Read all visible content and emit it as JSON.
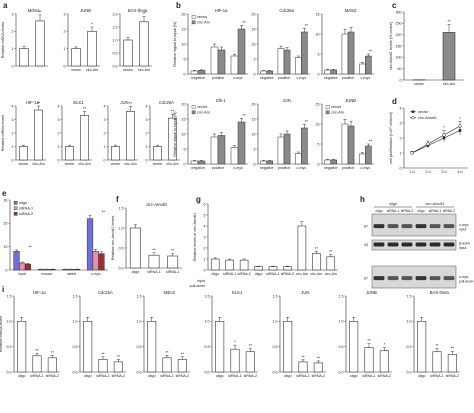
{
  "chart_data": [
    {
      "id": "a1",
      "type": "bar",
      "panel": "a",
      "title": "Mdm2",
      "categories": [
        "vector",
        "circ-Amotl1"
      ],
      "values": [
        1.0,
        2.6
      ],
      "errors": [
        0.15,
        0.35
      ],
      "ylim": [
        0,
        3
      ],
      "yticks": [
        "0",
        "1",
        "2",
        "3"
      ],
      "ylabel": "Relative mRNA levels",
      "sig": [
        "",
        "**"
      ],
      "colors": [
        "#ffffff",
        "#ffffff"
      ],
      "show_xticks": false
    },
    {
      "id": "a2",
      "type": "bar",
      "panel": "a",
      "title": "JUNB",
      "categories": [
        "vector",
        "circ-Am"
      ],
      "values": [
        1.0,
        2.0
      ],
      "errors": [
        0.1,
        0.25
      ],
      "ylim": [
        0,
        3
      ],
      "yticks": [
        "0",
        "1",
        "2",
        "3"
      ],
      "ylabel": "",
      "sig": [
        "",
        "*"
      ],
      "colors": [
        "#ffffff",
        "#ffffff"
      ],
      "show_xticks": true
    },
    {
      "id": "a3",
      "type": "bar",
      "panel": "a",
      "title": "BAX-theta",
      "categories": [
        "vector",
        "circ-Am"
      ],
      "values": [
        1.0,
        1.7
      ],
      "errors": [
        0.1,
        0.2
      ],
      "ylim": [
        0,
        2
      ],
      "yticks": [
        "0.0",
        "0.5",
        "1.0",
        "1.5",
        "2.0"
      ],
      "ylabel": "",
      "sig": [
        "",
        "**"
      ],
      "colors": [
        "#ffffff",
        "#ffffff"
      ],
      "show_xticks": true
    },
    {
      "id": "a4",
      "type": "bar",
      "panel": "a",
      "title": "HIF-1a",
      "categories": [
        "vector",
        "circ-Am"
      ],
      "values": [
        1.0,
        3.7
      ],
      "errors": [
        0.1,
        0.3
      ],
      "ylim": [
        0,
        4
      ],
      "yticks": [
        "0",
        "1",
        "2",
        "3",
        "4"
      ],
      "ylabel": "Relative mRNA levels",
      "sig": [
        "",
        "**"
      ],
      "colors": [
        "#ffffff",
        "#ffffff"
      ],
      "show_xticks": true
    },
    {
      "id": "a5",
      "type": "bar",
      "panel": "a",
      "title": "ELK1",
      "categories": [
        "vector",
        "circ-Am"
      ],
      "values": [
        1.0,
        3.3
      ],
      "errors": [
        0.1,
        0.3
      ],
      "ylim": [
        0,
        4
      ],
      "yticks": [
        "0",
        "1",
        "2",
        "3",
        "4"
      ],
      "ylabel": "",
      "sig": [
        "",
        "**"
      ],
      "colors": [
        "#ffffff",
        "#ffffff"
      ],
      "show_xticks": true
    },
    {
      "id": "a6",
      "type": "bar",
      "panel": "a",
      "title": "JUN",
      "categories": [
        "vector",
        "circ-Am"
      ],
      "values": [
        1.0,
        3.6
      ],
      "errors": [
        0.1,
        0.35
      ],
      "ylim": [
        0,
        4
      ],
      "yticks": [
        "0",
        "1",
        "2",
        "3",
        "4"
      ],
      "ylabel": "",
      "sig": [
        "",
        "**"
      ],
      "colors": [
        "#ffffff",
        "#ffffff"
      ],
      "show_xticks": true
    },
    {
      "id": "a7",
      "type": "bar",
      "panel": "a",
      "title": "Cdc25A",
      "categories": [
        "vector",
        "circ-Am"
      ],
      "values": [
        1.0,
        3.1
      ],
      "errors": [
        0.1,
        0.3
      ],
      "ylim": [
        0,
        4
      ],
      "yticks": [
        "0",
        "1",
        "2",
        "3",
        "4"
      ],
      "ylabel": "",
      "sig": [
        "",
        "**"
      ],
      "colors": [
        "#ffffff",
        "#ffffff"
      ],
      "show_xticks": true
    },
    {
      "id": "b1",
      "type": "bar",
      "panel": "b",
      "title": "HIF-1a",
      "categories": [
        "negative",
        "positive",
        "c-myc"
      ],
      "series": [
        {
          "name": "vector",
          "values": [
            1.0,
            9.0,
            6.0
          ],
          "errors": [
            0.2,
            1.0,
            0.6
          ]
        },
        {
          "name": "circ-Am",
          "values": [
            1.2,
            8.0,
            15.0
          ],
          "errors": [
            0.2,
            1.0,
            1.2
          ]
        }
      ],
      "ylim": [
        0,
        20
      ],
      "yticks": [
        "0",
        "5",
        "10",
        "15",
        "20"
      ],
      "ylabel": "Relative signal to input (%)",
      "sig": [
        "",
        "",
        "**"
      ],
      "legend": [
        "vector",
        "circ-Am"
      ]
    },
    {
      "id": "b2",
      "type": "bar",
      "panel": "b",
      "title": "Cdc25a",
      "categories": [
        "negative",
        "positive",
        "c-myc"
      ],
      "series": [
        {
          "name": "vector",
          "values": [
            1.0,
            8.5,
            5.5
          ],
          "errors": [
            0.2,
            0.8,
            0.5
          ]
        },
        {
          "name": "circ-Am",
          "values": [
            1.0,
            8.0,
            14.0
          ],
          "errors": [
            0.2,
            0.8,
            1.2
          ]
        }
      ],
      "ylim": [
        0,
        20
      ],
      "yticks": [
        "0",
        "5",
        "10",
        "15",
        "20"
      ],
      "ylabel": "",
      "sig": [
        "",
        "",
        "**"
      ],
      "legend": []
    },
    {
      "id": "b3",
      "type": "bar",
      "panel": "b",
      "title": "Mdm2",
      "categories": [
        "negative",
        "positive",
        "c-myc"
      ],
      "series": [
        {
          "name": "vector",
          "values": [
            1.0,
            10.0,
            2.5
          ],
          "errors": [
            0.2,
            1.2,
            0.4
          ]
        },
        {
          "name": "circ-Am",
          "values": [
            1.0,
            10.5,
            4.5
          ],
          "errors": [
            0.2,
            1.2,
            0.5
          ]
        }
      ],
      "ylim": [
        0,
        15
      ],
      "yticks": [
        "0",
        "5",
        "10",
        "15"
      ],
      "ylabel": "",
      "sig": [
        "",
        "",
        "**"
      ],
      "legend": []
    },
    {
      "id": "b4",
      "type": "bar",
      "panel": "b",
      "title": "Elk-1",
      "categories": [
        "negative",
        "positive",
        "c-myc"
      ],
      "series": [
        {
          "name": "vector",
          "values": [
            1.0,
            9.0,
            5.5
          ],
          "errors": [
            0.2,
            1.0,
            0.6
          ]
        },
        {
          "name": "circ-Am",
          "values": [
            1.0,
            9.5,
            14.0
          ],
          "errors": [
            0.2,
            1.0,
            1.2
          ]
        }
      ],
      "ylim": [
        0,
        20
      ],
      "yticks": [
        "0",
        "5",
        "10",
        "15",
        "20"
      ],
      "ylabel": "Relative signal to input (%)",
      "sig": [
        "",
        "",
        "**"
      ],
      "legend": [
        "vector",
        "circ-Am"
      ]
    },
    {
      "id": "b5",
      "type": "bar",
      "panel": "b",
      "title": "JUN",
      "categories": [
        "negative",
        "positive",
        "c-myc"
      ],
      "series": [
        {
          "name": "vector",
          "values": [
            1.0,
            9.0,
            3.5
          ],
          "errors": [
            0.2,
            1.0,
            0.5
          ]
        },
        {
          "name": "circ-Am",
          "values": [
            1.0,
            10.0,
            12.0
          ],
          "errors": [
            0.2,
            1.0,
            1.2
          ]
        }
      ],
      "ylim": [
        0,
        20
      ],
      "yticks": [
        "0",
        "5",
        "10",
        "15",
        "20"
      ],
      "ylabel": "",
      "sig": [
        "",
        "",
        "**"
      ],
      "legend": []
    },
    {
      "id": "b6",
      "type": "bar",
      "panel": "b",
      "title": "JUNB",
      "categories": [
        "negative",
        "positive",
        "c-myc"
      ],
      "series": [
        {
          "name": "vector",
          "values": [
            1.0,
            10.0,
            2.5
          ],
          "errors": [
            0.2,
            1.2,
            0.4
          ]
        },
        {
          "name": "circ-Am",
          "values": [
            1.0,
            9.5,
            4.5
          ],
          "errors": [
            0.2,
            1.2,
            0.5
          ]
        }
      ],
      "ylim": [
        0,
        15
      ],
      "yticks": [
        "0",
        "5",
        "10",
        "15"
      ],
      "ylabel": "",
      "sig": [
        "",
        "",
        "**"
      ],
      "legend": [
        "vector",
        "circ-Am"
      ]
    },
    {
      "id": "c",
      "type": "bar",
      "panel": "c",
      "title": "",
      "categories": [
        "vector",
        "circ-Am"
      ],
      "values": [
        1.0,
        210
      ],
      "errors": [
        0.5,
        35
      ],
      "ylim": [
        0,
        300
      ],
      "yticks": [
        "0",
        "50",
        "100",
        "150",
        "200",
        "250",
        "300"
      ],
      "ylabel": "circ-Amotl1 levels (% vector)",
      "sig": [
        "",
        "**"
      ],
      "colors": [
        "#ffffff",
        "#8a8a8a"
      ],
      "show_xticks": true
    },
    {
      "id": "d",
      "type": "line",
      "panel": "d",
      "title": "",
      "x": [
        "1 d",
        "2 d",
        "3 d",
        "4 d"
      ],
      "series": [
        {
          "name": "vector",
          "values": [
            1.0,
            1.5,
            2.0,
            2.5
          ],
          "errors": [
            0.1,
            0.15,
            0.25,
            0.3
          ],
          "marker": "square"
        },
        {
          "name": "circ-Amotl1",
          "values": [
            1.0,
            1.6,
            2.2,
            2.8
          ],
          "errors": [
            0.1,
            0.2,
            0.3,
            0.3
          ],
          "marker": "circle"
        }
      ],
      "ylim": [
        0,
        4
      ],
      "yticks": [
        "0",
        "1",
        "2",
        "3",
        "4"
      ],
      "ylabel": "cell proliferation (×10⁶ cells/ml)",
      "sig": [
        "",
        "",
        "*",
        "*"
      ],
      "legend": [
        "vector",
        "circ-Amotl1"
      ]
    },
    {
      "id": "e",
      "type": "bar",
      "panel": "e",
      "title": "",
      "categories": [
        "input",
        "mouse",
        "rabbit",
        "c-myc"
      ],
      "series": [
        {
          "name": "oligo",
          "values": [
            8.0,
            0.3,
            0.3,
            22
          ],
          "errors": [
            0.6,
            0.1,
            0.1,
            1.5
          ],
          "color": "#6f6fd6"
        },
        {
          "name": "siRNA-1",
          "values": [
            3.0,
            0.3,
            0.3,
            8.0
          ],
          "errors": [
            0.4,
            0.1,
            0.1,
            0.8
          ],
          "color": "#e68fb0"
        },
        {
          "name": "siRNA-2",
          "values": [
            2.5,
            0.3,
            0.3,
            7.0
          ],
          "errors": [
            0.4,
            0.1,
            0.1,
            0.8
          ],
          "color": "#9a3030"
        }
      ],
      "ylim": [
        0,
        30
      ],
      "yticks": [
        "0",
        "10",
        "20",
        "30"
      ],
      "ylabel": "Relative RNA levels to input",
      "sig": [
        "**",
        "",
        "",
        "**"
      ],
      "legend": [
        "oligo",
        "siRNA-1",
        "siRNA-2"
      ]
    },
    {
      "id": "f",
      "type": "bar",
      "panel": "f",
      "title": "circ-Amotl1",
      "categories": [
        "oligo",
        "siRNA-1",
        "siRNA-2"
      ],
      "values": [
        1.0,
        0.32,
        0.3
      ],
      "errors": [
        0.08,
        0.06,
        0.06
      ],
      "ylim": [
        0,
        1.5
      ],
      "yticks": [
        "0.0",
        "0.5",
        "1.0",
        "1.5"
      ],
      "ylabel": "Relative circ-Amotl1 levels",
      "sig": [
        "",
        "**",
        "**"
      ],
      "colors": [
        "#ffffff",
        "#ffffff",
        "#ffffff"
      ],
      "show_xticks": true
    },
    {
      "id": "g",
      "type": "bar",
      "panel": "g",
      "title": "",
      "categories": [
        "oligo",
        "siRNA-1",
        "siRNA-2",
        "oligo",
        "siRNA-1",
        "siRNA-2",
        "circ-Am",
        "circ-Am",
        "circ-Am"
      ],
      "values": [
        1.0,
        0.9,
        0.9,
        0.3,
        0.3,
        0.3,
        4.0,
        1.5,
        1.2
      ],
      "errors": [
        0.1,
        0.1,
        0.1,
        0.05,
        0.05,
        0.05,
        0.4,
        0.2,
        0.2
      ],
      "ylim": [
        0,
        6
      ],
      "yticks": [
        "0",
        "1",
        "2",
        "3",
        "4",
        "5",
        "6"
      ],
      "ylabel": "Relative levels of circ-Amotl1",
      "sig": [
        "",
        "",
        "",
        "",
        "",
        "",
        "",
        "**",
        "**"
      ],
      "colors": [
        "#ffffff",
        "#ffffff",
        "#ffffff",
        "#ffffff",
        "#ffffff",
        "#ffffff",
        "#ffffff",
        "#ffffff",
        "#ffffff"
      ],
      "row_labels": [
        "input",
        "pull-down"
      ],
      "show_xticks": true
    },
    {
      "id": "i1",
      "type": "bar",
      "panel": "i",
      "title": "HIF-1a",
      "categories": [
        "oligo",
        "siRNA-1",
        "siRNA-2"
      ],
      "values": [
        1.0,
        0.32,
        0.28
      ],
      "errors": [
        0.08,
        0.05,
        0.05
      ],
      "ylim": [
        0,
        1.5
      ],
      "yticks": [
        "0.0",
        "0.5",
        "1.0",
        "1.5"
      ],
      "ylabel": "Relative mRNA levels",
      "sig": [
        "",
        "**",
        "**"
      ],
      "colors": [
        "#ffffff",
        "#ffffff",
        "#ffffff"
      ],
      "show_xticks": true
    },
    {
      "id": "i2",
      "type": "bar",
      "panel": "i",
      "title": "Cdc25A",
      "categories": [
        "oligo",
        "siRNA-1",
        "siRNA-2"
      ],
      "values": [
        1.0,
        0.25,
        0.2
      ],
      "errors": [
        0.08,
        0.05,
        0.05
      ],
      "ylim": [
        0,
        1.5
      ],
      "yticks": [
        "0.0",
        "0.5",
        "1.0",
        "1.5"
      ],
      "ylabel": "",
      "sig": [
        "",
        "**",
        "**"
      ],
      "colors": [
        "#ffffff",
        "#ffffff",
        "#ffffff"
      ],
      "show_xticks": true
    },
    {
      "id": "i3",
      "type": "bar",
      "panel": "i",
      "title": "Mdm2",
      "categories": [
        "oligo",
        "siRNA-1",
        "siRNA-2"
      ],
      "values": [
        1.0,
        0.28,
        0.25
      ],
      "errors": [
        0.08,
        0.05,
        0.05
      ],
      "ylim": [
        0,
        1.5
      ],
      "yticks": [
        "0.0",
        "0.5",
        "1.0",
        "1.5"
      ],
      "ylabel": "",
      "sig": [
        "",
        "**",
        "**"
      ],
      "colors": [
        "#ffffff",
        "#ffffff",
        "#ffffff"
      ],
      "show_xticks": true
    },
    {
      "id": "i4",
      "type": "bar",
      "panel": "i",
      "title": "ELK1",
      "categories": [
        "oligo",
        "siRNA-1",
        "siRNA-2"
      ],
      "values": [
        1.0,
        0.45,
        0.4
      ],
      "errors": [
        0.08,
        0.08,
        0.06
      ],
      "ylim": [
        0,
        1.5
      ],
      "yticks": [
        "0.0",
        "0.5",
        "1.0",
        "1.5"
      ],
      "ylabel": "",
      "sig": [
        "",
        "*",
        "**"
      ],
      "colors": [
        "#ffffff",
        "#ffffff",
        "#ffffff"
      ],
      "show_xticks": true
    },
    {
      "id": "i5",
      "type": "bar",
      "panel": "i",
      "title": "JUN",
      "categories": [
        "oligo",
        "siRNA-1",
        "siRNA-2"
      ],
      "values": [
        1.0,
        0.2,
        0.18
      ],
      "errors": [
        0.08,
        0.04,
        0.04
      ],
      "ylim": [
        0,
        1.5
      ],
      "yticks": [
        "0.0",
        "0.5",
        "1.0",
        "1.5"
      ],
      "ylabel": "",
      "sig": [
        "",
        "**",
        "**"
      ],
      "colors": [
        "#ffffff",
        "#ffffff",
        "#ffffff"
      ],
      "show_xticks": true
    },
    {
      "id": "i6",
      "type": "bar",
      "panel": "i",
      "title": "JUNB",
      "categories": [
        "oligo",
        "siRNA-1",
        "siRNA-2"
      ],
      "values": [
        1.0,
        0.48,
        0.42
      ],
      "errors": [
        0.08,
        0.08,
        0.06
      ],
      "ylim": [
        0,
        1.5
      ],
      "yticks": [
        "0.0",
        "0.5",
        "1.0",
        "1.5"
      ],
      "ylabel": "",
      "sig": [
        "",
        "**",
        "*"
      ],
      "colors": [
        "#ffffff",
        "#ffffff",
        "#ffffff"
      ],
      "show_xticks": true
    },
    {
      "id": "i7",
      "type": "bar",
      "panel": "i",
      "title": "BAX-theta",
      "categories": [
        "oligo",
        "siRNA-1",
        "siRNA-2"
      ],
      "values": [
        1.0,
        0.4,
        0.35
      ],
      "errors": [
        0.08,
        0.06,
        0.06
      ],
      "ylim": [
        0,
        1.5
      ],
      "yticks": [
        "0.0",
        "0.5",
        "1.0",
        "1.5"
      ],
      "ylabel": "",
      "sig": [
        "",
        "**",
        "**"
      ],
      "colors": [
        "#ffffff",
        "#ffffff",
        "#ffffff"
      ],
      "show_xticks": true
    }
  ],
  "panel_letters": [
    "a",
    "b",
    "c",
    "d",
    "e",
    "f",
    "g",
    "h",
    "i"
  ],
  "blot": {
    "group_labels": [
      "oligo",
      "circ-Amotl1"
    ],
    "lane_labels": [
      "oligo",
      "siRNA-1",
      "siRNA-2",
      "oligo",
      "siRNA-1",
      "siRNA-2"
    ],
    "mw_markers": [
      "67",
      "43",
      "67"
    ],
    "band_labels": [
      "c-myc input",
      "β-actin input",
      "c-myc pull-down"
    ]
  },
  "colors": {
    "bar_outline": "#333333",
    "bar_grey": "#8a8a8a",
    "bar_white": "#ffffff"
  }
}
